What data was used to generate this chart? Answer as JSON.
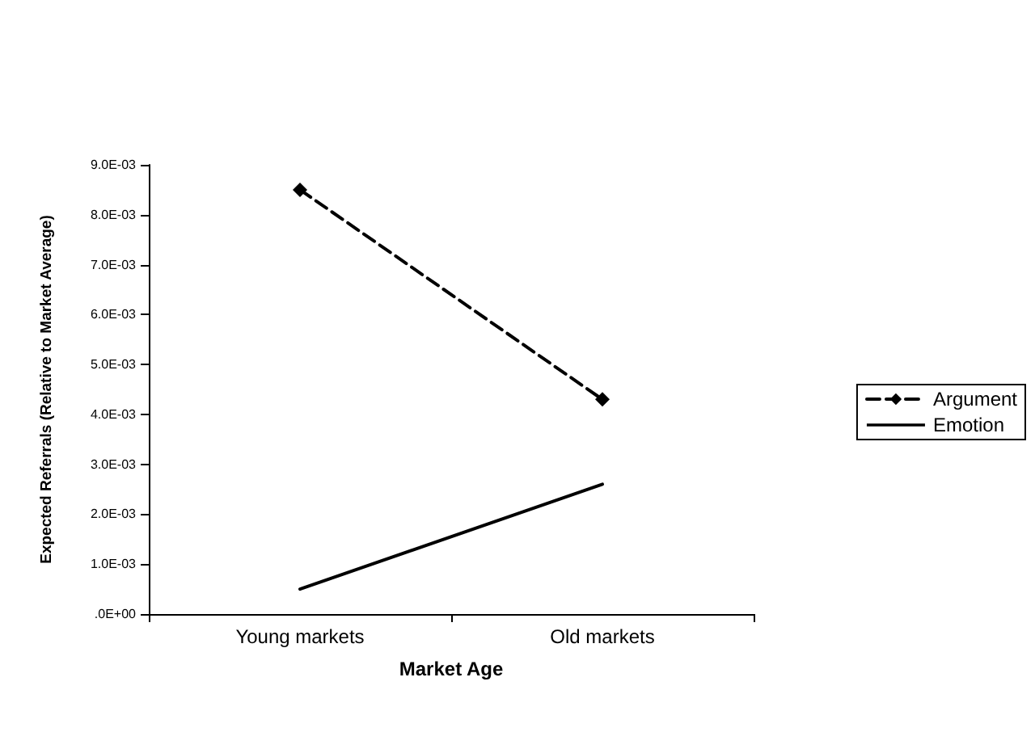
{
  "chart_data": {
    "type": "line",
    "xlabel": "Market Age",
    "ylabel": "Expected Referrals (Relative to Market Average)",
    "categories": [
      "Young markets",
      "Old markets"
    ],
    "series": [
      {
        "name": "Argument",
        "color": "#000000",
        "values": [
          0.0085,
          0.0043
        ],
        "marker": "diamond",
        "line_style": "dashed"
      },
      {
        "name": "Emotion",
        "color": "#000000",
        "values": [
          0.0005,
          0.0026
        ],
        "marker": "none",
        "line_style": "solid"
      }
    ],
    "ylim": [
      0,
      0.009
    ],
    "yticks": [
      {
        "value": 0,
        "label": ".0E+00"
      },
      {
        "value": 0.001,
        "label": "1.0E-03"
      },
      {
        "value": 0.002,
        "label": "2.0E-03"
      },
      {
        "value": 0.003,
        "label": "3.0E-03"
      },
      {
        "value": 0.004,
        "label": "4.0E-03"
      },
      {
        "value": 0.005,
        "label": "5.0E-03"
      },
      {
        "value": 0.006,
        "label": "6.0E-03"
      },
      {
        "value": 0.007,
        "label": "7.0E-03"
      },
      {
        "value": 0.008,
        "label": "8.0E-03"
      },
      {
        "value": 0.009,
        "label": "9.0E-03"
      }
    ],
    "legend": "right",
    "grid": false
  }
}
